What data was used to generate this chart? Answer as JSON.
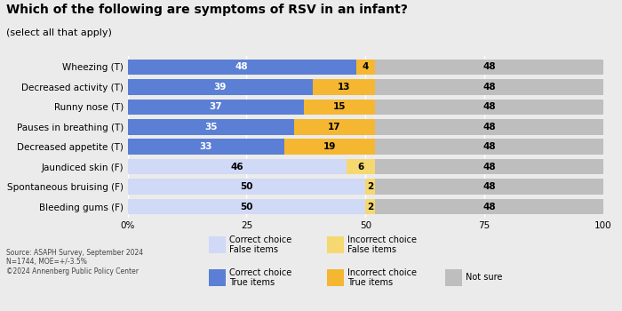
{
  "title": "Which of the following are symptoms of RSV in an infant?",
  "subtitle": "(select all that apply)",
  "categories": [
    "Wheezing (T)",
    "Decreased activity (T)",
    "Runny nose (T)",
    "Pauses in breathing (T)",
    "Decreased appetite (T)",
    "Jaundiced skin (F)",
    "Spontaneous bruising (F)",
    "Bleeding gums (F)"
  ],
  "true_items": [
    true,
    true,
    true,
    true,
    true,
    false,
    false,
    false
  ],
  "correct_values": [
    48,
    39,
    37,
    35,
    33,
    46,
    50,
    50
  ],
  "incorrect_values": [
    4,
    13,
    15,
    17,
    19,
    6,
    2,
    2
  ],
  "not_sure_values": [
    48,
    48,
    48,
    48,
    48,
    48,
    48,
    48
  ],
  "color_correct_true": "#5B7FD4",
  "color_incorrect_true": "#F5B731",
  "color_correct_false": "#D0D9F5",
  "color_incorrect_false": "#F5D870",
  "color_not_sure": "#BEBEBE",
  "bg_color": "#EBEBEB",
  "bar_height": 0.78,
  "xlim": [
    0,
    100
  ],
  "xticks": [
    0,
    25,
    50,
    75,
    100
  ],
  "xticklabels": [
    "0%",
    "25",
    "50",
    "75",
    "100"
  ],
  "source_text": "Source: ASAPH Survey, September 2024\nN=1744, MOE=+/-3.5%\n©2024 Annenberg Public Policy Center",
  "legend": {
    "correct_false_label": "Correct choice\nFalse items",
    "incorrect_false_label": "Incorrect choice\nFalse items",
    "correct_true_label": "Correct choice\nTrue items",
    "incorrect_true_label": "Incorrect choice\nTrue items",
    "not_sure_label": "Not sure"
  }
}
